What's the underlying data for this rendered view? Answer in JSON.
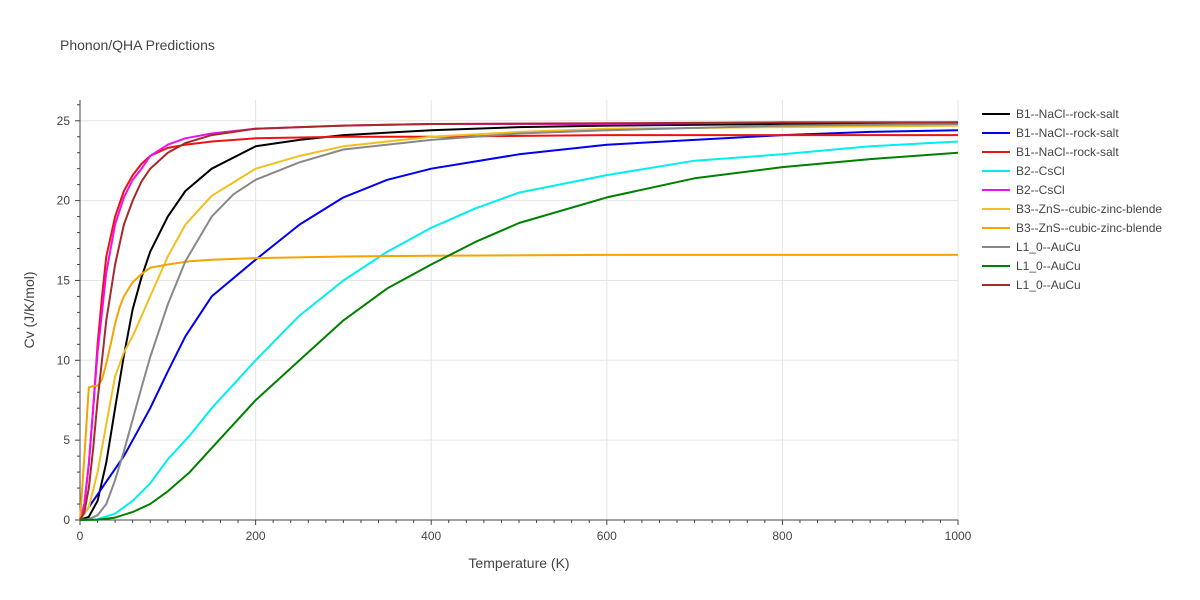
{
  "chart_data": {
    "type": "line",
    "title": "Phonon/QHA Predictions",
    "xlabel": "Temperature (K)",
    "ylabel": "Cv (J/K/mol)",
    "xlim": [
      0,
      1000
    ],
    "ylim": [
      0,
      26.3
    ],
    "xticks": [
      0,
      200,
      400,
      600,
      800,
      1000
    ],
    "yticks": [
      0,
      5,
      10,
      15,
      20,
      25
    ],
    "xtick_labels": [
      "0",
      "200",
      "400",
      "600",
      "800",
      "1000"
    ],
    "ytick_labels": [
      "0",
      "5",
      "10",
      "15",
      "20",
      "25"
    ],
    "grid": true,
    "legend_position": "right",
    "series": [
      {
        "name": "B1--NaCl--rock-salt",
        "color": "#000000",
        "x": [
          0,
          10,
          20,
          30,
          40,
          50,
          60,
          70,
          80,
          100,
          120,
          150,
          200,
          250,
          300,
          400,
          500,
          600,
          800,
          1000
        ],
        "y": [
          0,
          0.2,
          1.2,
          3.6,
          7.0,
          10.3,
          13.2,
          15.2,
          16.8,
          19.0,
          20.6,
          22.0,
          23.4,
          23.8,
          24.1,
          24.4,
          24.6,
          24.7,
          24.8,
          24.9
        ]
      },
      {
        "name": "B1--NaCl--rock-salt",
        "color": "#0000ee",
        "x": [
          0,
          10,
          20,
          30,
          40,
          50,
          60,
          80,
          100,
          120,
          150,
          200,
          250,
          300,
          350,
          400,
          500,
          600,
          700,
          800,
          900,
          1000
        ],
        "y": [
          0,
          0.8,
          1.6,
          2.4,
          3.2,
          4.0,
          5.0,
          7.0,
          9.3,
          11.5,
          14.0,
          16.3,
          18.5,
          20.2,
          21.3,
          22.0,
          22.9,
          23.5,
          23.8,
          24.1,
          24.3,
          24.4
        ]
      },
      {
        "name": "B1--NaCl--rock-salt",
        "color": "#ee1111",
        "x": [
          0,
          5,
          10,
          15,
          20,
          25,
          30,
          40,
          50,
          60,
          70,
          80,
          100,
          120,
          150,
          200,
          300,
          400,
          600,
          800,
          1000
        ],
        "y": [
          0,
          1.0,
          3.5,
          7.0,
          11.0,
          14.0,
          16.5,
          19.0,
          20.6,
          21.6,
          22.3,
          22.8,
          23.3,
          23.5,
          23.7,
          23.9,
          24.0,
          24.0,
          24.1,
          24.1,
          24.1
        ]
      },
      {
        "name": "B2--CsCl",
        "color": "#00eeee",
        "x": [
          0,
          20,
          40,
          60,
          80,
          100,
          125,
          150,
          175,
          200,
          250,
          300,
          350,
          400,
          450,
          500,
          600,
          700,
          800,
          900,
          1000
        ],
        "y": [
          0,
          0.05,
          0.4,
          1.2,
          2.3,
          3.8,
          5.3,
          7.0,
          8.5,
          10.0,
          12.8,
          15.0,
          16.8,
          18.3,
          19.5,
          20.5,
          21.6,
          22.5,
          22.9,
          23.4,
          23.7
        ]
      },
      {
        "name": "B2--CsCl",
        "color": "#ee11ee",
        "x": [
          0,
          5,
          10,
          15,
          20,
          25,
          30,
          40,
          50,
          60,
          70,
          80,
          100,
          120,
          150,
          200,
          300,
          400,
          600,
          800,
          1000
        ],
        "y": [
          0,
          1.0,
          3.5,
          7.0,
          10.5,
          13.0,
          15.5,
          18.5,
          20.2,
          21.3,
          22.0,
          22.8,
          23.5,
          23.9,
          24.2,
          24.5,
          24.7,
          24.8,
          24.8,
          24.9,
          24.9
        ]
      },
      {
        "name": "B3--ZnS--cubic-zinc-blende",
        "color": "#f0c020",
        "x": [
          0,
          10,
          20,
          30,
          40,
          50,
          60,
          80,
          100,
          120,
          150,
          200,
          250,
          300,
          400,
          500,
          600,
          800,
          1000
        ],
        "y": [
          0,
          0.8,
          3.0,
          6.0,
          9.0,
          10.5,
          11.5,
          14.0,
          16.5,
          18.5,
          20.3,
          22.0,
          22.8,
          23.4,
          24.0,
          24.3,
          24.5,
          24.6,
          24.7
        ]
      },
      {
        "name": "B3--ZnS--cubic-zinc-blende",
        "color": "#f5a300",
        "x": [
          0,
          5,
          10,
          15,
          20,
          25,
          30,
          35,
          40,
          45,
          50,
          60,
          70,
          80,
          100,
          125,
          150,
          200,
          300,
          400,
          600,
          800,
          1000
        ],
        "y": [
          0,
          4.0,
          8.3,
          8.4,
          8.4,
          8.8,
          9.8,
          11.0,
          12.3,
          13.3,
          14.0,
          14.9,
          15.4,
          15.8,
          16.0,
          16.2,
          16.3,
          16.4,
          16.5,
          16.55,
          16.6,
          16.6,
          16.6
        ]
      },
      {
        "name": "L1_0--AuCu",
        "color": "#888888",
        "x": [
          0,
          10,
          20,
          30,
          40,
          50,
          60,
          70,
          80,
          100,
          120,
          150,
          175,
          200,
          250,
          300,
          400,
          500,
          600,
          800,
          1000
        ],
        "y": [
          0,
          0.05,
          0.3,
          1.0,
          2.5,
          4.3,
          6.3,
          8.3,
          10.2,
          13.5,
          16.2,
          19.0,
          20.4,
          21.3,
          22.4,
          23.2,
          23.8,
          24.2,
          24.4,
          24.7,
          24.8
        ]
      },
      {
        "name": "L1_0--AuCu",
        "color": "#008000",
        "x": [
          0,
          20,
          40,
          60,
          80,
          100,
          125,
          150,
          175,
          200,
          250,
          300,
          350,
          400,
          450,
          500,
          600,
          700,
          800,
          900,
          1000
        ],
        "y": [
          0,
          0.02,
          0.15,
          0.5,
          1.0,
          1.8,
          3.0,
          4.5,
          6.0,
          7.5,
          10.0,
          12.5,
          14.5,
          16.0,
          17.4,
          18.6,
          20.2,
          21.4,
          22.1,
          22.6,
          23.0
        ]
      },
      {
        "name": "L1_0--AuCu",
        "color": "#a52a2a",
        "x": [
          0,
          5,
          10,
          15,
          20,
          25,
          30,
          40,
          50,
          60,
          70,
          80,
          100,
          120,
          150,
          200,
          300,
          400,
          600,
          800,
          1000
        ],
        "y": [
          0,
          0.5,
          2.0,
          4.5,
          7.5,
          10.0,
          12.5,
          16.0,
          18.5,
          20.0,
          21.2,
          22.0,
          23.0,
          23.6,
          24.1,
          24.5,
          24.7,
          24.8,
          24.85,
          24.9,
          24.9
        ]
      }
    ]
  }
}
